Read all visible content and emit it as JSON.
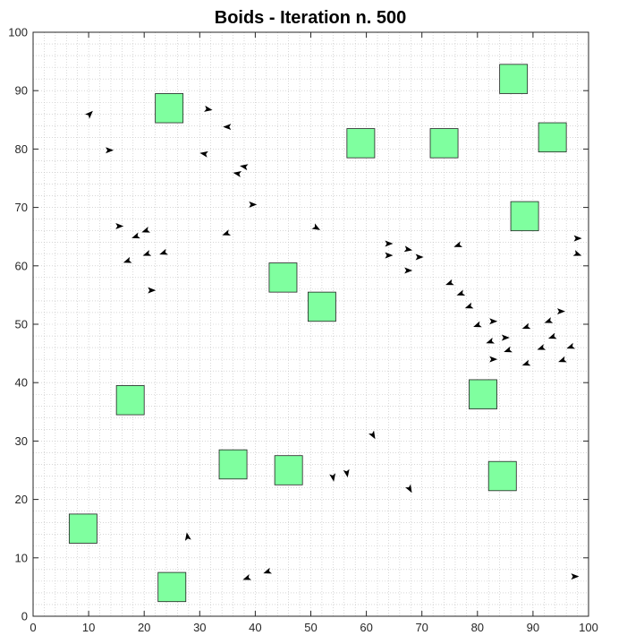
{
  "chart_data": {
    "type": "scatter",
    "title": "Boids - Iteration n. 500",
    "xlabel": "",
    "ylabel": "",
    "xlim": [
      0,
      100
    ],
    "ylim": [
      0,
      100
    ],
    "xticks": [
      0,
      10,
      20,
      30,
      40,
      50,
      60,
      70,
      80,
      90,
      100
    ],
    "yticks": [
      0,
      10,
      20,
      30,
      40,
      50,
      60,
      70,
      80,
      90,
      100
    ],
    "grid": "minor dotted",
    "colors": {
      "obstacle_fill": "#7fff9f",
      "obstacle_edge": "#222222",
      "boid": "#000000",
      "axis": "#262626",
      "grid": "#bfbfbf"
    },
    "obstacles": {
      "side": 5,
      "centers": [
        [
          24.5,
          87
        ],
        [
          86.5,
          92
        ],
        [
          93.5,
          82
        ],
        [
          59,
          81
        ],
        [
          74,
          81
        ],
        [
          88.5,
          68.5
        ],
        [
          45,
          58
        ],
        [
          52,
          53
        ],
        [
          81,
          38
        ],
        [
          17.5,
          37
        ],
        [
          36,
          26
        ],
        [
          46,
          25
        ],
        [
          84.5,
          24
        ],
        [
          9,
          15
        ],
        [
          25,
          5
        ]
      ]
    },
    "boids": [
      [
        10.2,
        86.0,
        45
      ],
      [
        13.7,
        79.8,
        0
      ],
      [
        31.5,
        86.8,
        -10
      ],
      [
        35.0,
        83.8,
        180
      ],
      [
        30.8,
        79.2,
        170
      ],
      [
        38.0,
        77.0,
        170
      ],
      [
        36.8,
        75.8,
        170
      ],
      [
        39.5,
        70.5,
        0
      ],
      [
        15.5,
        66.8,
        0
      ],
      [
        20.3,
        66.0,
        200
      ],
      [
        18.5,
        65.0,
        200
      ],
      [
        34.8,
        65.5,
        200
      ],
      [
        51.0,
        66.5,
        -30
      ],
      [
        20.5,
        62.0,
        200
      ],
      [
        23.5,
        62.2,
        200
      ],
      [
        17.0,
        60.8,
        200
      ],
      [
        21.3,
        55.8,
        0
      ],
      [
        64.0,
        63.8,
        0
      ],
      [
        64.0,
        61.8,
        0
      ],
      [
        67.5,
        62.8,
        -10
      ],
      [
        69.5,
        61.5,
        0
      ],
      [
        67.5,
        59.2,
        0
      ],
      [
        76.5,
        63.5,
        200
      ],
      [
        98.0,
        64.7,
        0
      ],
      [
        98.0,
        62.0,
        -20
      ],
      [
        75.0,
        57.0,
        200
      ],
      [
        77.0,
        55.2,
        200
      ],
      [
        78.5,
        53.0,
        200
      ],
      [
        80.0,
        49.8,
        200
      ],
      [
        82.8,
        50.5,
        0
      ],
      [
        88.8,
        49.5,
        200
      ],
      [
        92.8,
        50.5,
        200
      ],
      [
        95.0,
        52.2,
        0
      ],
      [
        82.3,
        47.0,
        200
      ],
      [
        85.0,
        47.7,
        0
      ],
      [
        93.5,
        47.8,
        200
      ],
      [
        85.5,
        45.5,
        200
      ],
      [
        91.5,
        45.9,
        200
      ],
      [
        96.8,
        46.1,
        200
      ],
      [
        82.8,
        44.0,
        0
      ],
      [
        88.8,
        43.2,
        200
      ],
      [
        95.3,
        43.8,
        200
      ],
      [
        61.2,
        31.0,
        -60
      ],
      [
        56.5,
        24.5,
        -80
      ],
      [
        54.0,
        23.8,
        -80
      ],
      [
        67.8,
        21.8,
        -60
      ],
      [
        27.8,
        13.6,
        100
      ],
      [
        42.2,
        7.6,
        200
      ],
      [
        38.5,
        6.5,
        200
      ],
      [
        97.5,
        6.8,
        0
      ]
    ]
  }
}
